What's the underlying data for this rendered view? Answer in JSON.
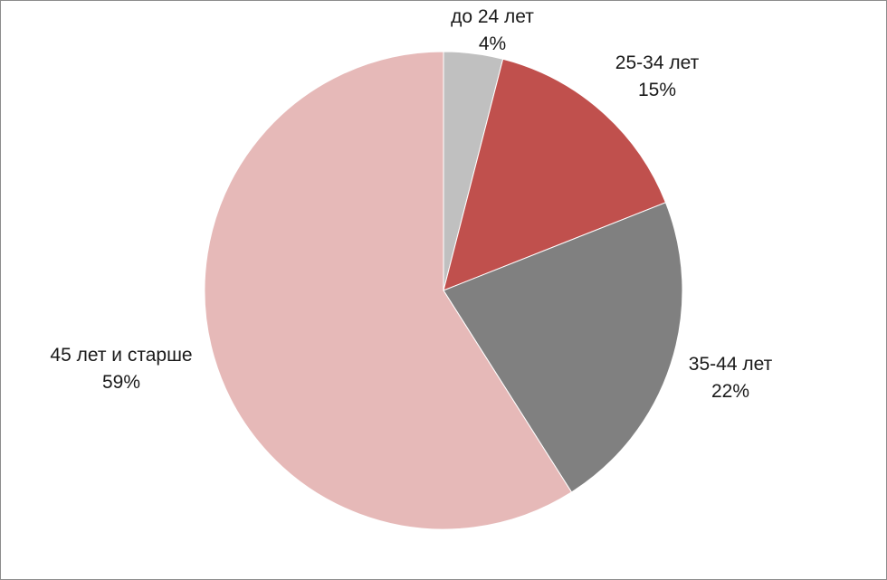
{
  "chart_data": {
    "type": "pie",
    "start_angle_deg": 0,
    "direction": "clockwise",
    "slices": [
      {
        "label": "до 24 лет",
        "value": 4,
        "value_label": "4%",
        "color": "#c0c0c0"
      },
      {
        "label": "25-34 лет",
        "value": 15,
        "value_label": "15%",
        "color": "#c0504d"
      },
      {
        "label": "35-44 лет",
        "value": 22,
        "value_label": "22%",
        "color": "#808080"
      },
      {
        "label": "45 лет и старше",
        "value": 59,
        "value_label": "59%",
        "color": "#e6b9b8"
      }
    ],
    "legend": "none"
  }
}
